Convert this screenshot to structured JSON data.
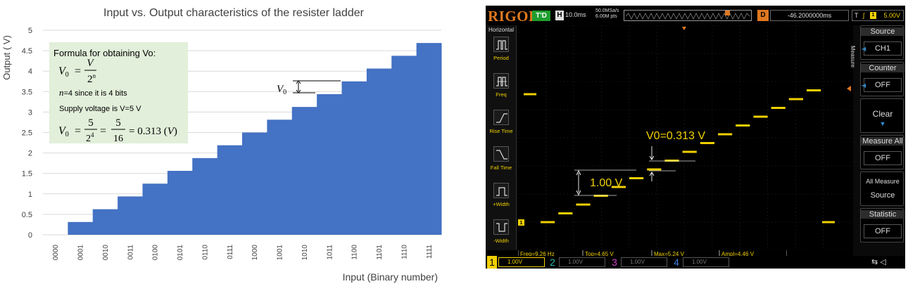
{
  "chart_data": {
    "type": "bar",
    "title": "Input vs. Output characteristics of the resister ladder",
    "xlabel": "Input (Binary number)",
    "ylabel": "Output ( V)",
    "ylim": [
      0,
      5
    ],
    "yticks": [
      "0",
      "0.5",
      "1",
      "1.5",
      "2",
      "2.5",
      "3",
      "3.5",
      "4",
      "4.5",
      "5"
    ],
    "grid": true,
    "categories": [
      "0000",
      "0001",
      "0010",
      "0011",
      "0100",
      "0101",
      "0110",
      "0111",
      "1000",
      "1001",
      "1010",
      "1011",
      "1100",
      "1101",
      "1110",
      "1111"
    ],
    "values": [
      0,
      0.313,
      0.625,
      0.938,
      1.25,
      1.563,
      1.875,
      2.188,
      2.5,
      2.813,
      3.125,
      3.438,
      3.75,
      4.063,
      4.375,
      4.688
    ],
    "bar_color": "#4472c4",
    "annotation_v0": "V",
    "formula_box": {
      "heading": "Formula for obtaining Vo:",
      "eq1_lhs": "V",
      "eq1_num": "V",
      "eq1_den": "2",
      "eq1_den_exp": "n",
      "line2_var": "n",
      "line2_rest": "=4 since it is 4 bits",
      "line3": "Supply voltage is V=5 V",
      "eq2_lhs": "V",
      "eq2_num1": "5",
      "eq2_den1": "2",
      "eq2_den1_exp": "4",
      "eq2_num2": "5",
      "eq2_den2": "16",
      "eq2_result": "= 0.313 (",
      "eq2_unit": "V",
      "eq2_close": ")",
      "subscript": "0",
      "bg_color": "#e2efda"
    }
  },
  "scope": {
    "logo": "RIGOL",
    "run_state": "T'D",
    "timebase_label": "H",
    "timebase": "10.0ms",
    "sample_rate": "50.0MSa/s",
    "memory_depth": "6.00M pts",
    "delay_label": "D",
    "delay": "-46.2000000ms",
    "trigger_label": "T",
    "trigger_edge": "ʃ",
    "trigger_channel": "1",
    "trigger_level": "5.00V",
    "left_menu_title": "Horizontal",
    "left_menu_items": [
      "Period",
      "Freq",
      "Rise Time",
      "Fall Time",
      "+Width",
      "-Width"
    ],
    "right_menu_vertical": "Measure",
    "right_menu": [
      {
        "title": "Source",
        "value": "CH1"
      },
      {
        "title": "Counter",
        "value": "OFF"
      },
      {
        "title": "Clear"
      },
      {
        "title": "Measure All",
        "value": "OFF"
      },
      {
        "line1": "All Measure",
        "line2": "Source"
      },
      {
        "title": "Statistic",
        "value": "OFF"
      }
    ],
    "annotation_step": "V0=0.313 V",
    "annotation_range": "1.00 V",
    "channel_marker": "1",
    "results": [
      "Freq=9.26 Hz",
      "Top=4.65 V",
      "Max=5.24 V",
      "Ampl=4.46 V"
    ],
    "channels": [
      {
        "num": "1",
        "value": "1.00V",
        "color": "#f0d000"
      },
      {
        "num": "2",
        "value": "1.00V",
        "color": "#2fb8a8"
      },
      {
        "num": "3",
        "value": "1.00V",
        "color": "#d040c8"
      },
      {
        "num": "4",
        "value": "1.00V",
        "color": "#3a7ee0"
      }
    ],
    "trace_color": "#f0d000",
    "marker_color": "#e07820"
  }
}
